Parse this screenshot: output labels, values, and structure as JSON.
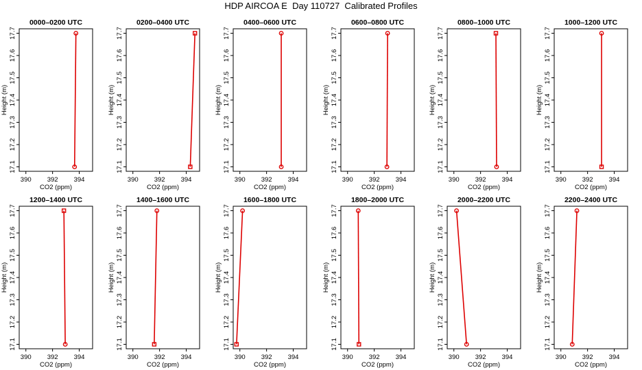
{
  "figure": {
    "title": "HDP AIRCOA E  Day 110727  Calibrated Profiles"
  },
  "chart_data": [
    {
      "type": "line",
      "title": "0000–0200 UTC",
      "xlabel": "CO2 (ppm)",
      "ylabel": "Height (m)",
      "xlim": [
        389.5,
        395
      ],
      "ylim": [
        17.08,
        17.72
      ],
      "xticks": [
        "390",
        "392",
        "394"
      ],
      "yticks": [
        "17.1",
        "17.2",
        "17.3",
        "17.4",
        "17.5",
        "17.6",
        "17.7"
      ],
      "series": [
        {
          "x": [
            393.65,
            393.75
          ],
          "y": [
            17.1,
            17.7
          ],
          "markers": [
            "circle",
            "circle"
          ]
        }
      ]
    },
    {
      "type": "line",
      "title": "0200–0400 UTC",
      "xlabel": "CO2 (ppm)",
      "ylabel": "Height (m)",
      "xlim": [
        389.5,
        395
      ],
      "ylim": [
        17.08,
        17.72
      ],
      "xticks": [
        "390",
        "392",
        "394"
      ],
      "yticks": [
        "17.1",
        "17.2",
        "17.3",
        "17.4",
        "17.5",
        "17.6",
        "17.7"
      ],
      "series": [
        {
          "x": [
            394.3,
            394.65
          ],
          "y": [
            17.1,
            17.7
          ],
          "markers": [
            "square",
            "square"
          ]
        }
      ]
    },
    {
      "type": "line",
      "title": "0400–0600 UTC",
      "xlabel": "CO2 (ppm)",
      "ylabel": "Height (m)",
      "xlim": [
        389.5,
        395
      ],
      "ylim": [
        17.08,
        17.72
      ],
      "xticks": [
        "390",
        "392",
        "394"
      ],
      "yticks": [
        "17.1",
        "17.2",
        "17.3",
        "17.4",
        "17.5",
        "17.6",
        "17.7"
      ],
      "series": [
        {
          "x": [
            393.1,
            393.1
          ],
          "y": [
            17.1,
            17.7
          ],
          "markers": [
            "circle",
            "circle"
          ]
        }
      ]
    },
    {
      "type": "line",
      "title": "0600–0800 UTC",
      "xlabel": "CO2 (ppm)",
      "ylabel": "Height (m)",
      "xlim": [
        389.5,
        395
      ],
      "ylim": [
        17.08,
        17.72
      ],
      "xticks": [
        "390",
        "392",
        "394"
      ],
      "yticks": [
        "17.1",
        "17.2",
        "17.3",
        "17.4",
        "17.5",
        "17.6",
        "17.7"
      ],
      "series": [
        {
          "x": [
            392.95,
            393.0
          ],
          "y": [
            17.1,
            17.7
          ],
          "markers": [
            "circle",
            "circle"
          ]
        }
      ]
    },
    {
      "type": "line",
      "title": "0800–1000 UTC",
      "xlabel": "CO2 (ppm)",
      "ylabel": "Height (m)",
      "xlim": [
        389.5,
        395
      ],
      "ylim": [
        17.08,
        17.72
      ],
      "xticks": [
        "390",
        "392",
        "394"
      ],
      "yticks": [
        "17.1",
        "17.2",
        "17.3",
        "17.4",
        "17.5",
        "17.6",
        "17.7"
      ],
      "series": [
        {
          "x": [
            393.2,
            393.15
          ],
          "y": [
            17.1,
            17.7
          ],
          "markers": [
            "circle",
            "square"
          ]
        }
      ]
    },
    {
      "type": "line",
      "title": "1000–1200 UTC",
      "xlabel": "CO2 (ppm)",
      "ylabel": "Height (m)",
      "xlim": [
        389.5,
        395
      ],
      "ylim": [
        17.08,
        17.72
      ],
      "xticks": [
        "390",
        "392",
        "394"
      ],
      "yticks": [
        "17.1",
        "17.2",
        "17.3",
        "17.4",
        "17.5",
        "17.6",
        "17.7"
      ],
      "series": [
        {
          "x": [
            393.05,
            393.05
          ],
          "y": [
            17.1,
            17.7
          ],
          "markers": [
            "square",
            "circle"
          ]
        }
      ]
    },
    {
      "type": "line",
      "title": "1200–1400 UTC",
      "xlabel": "CO2 (ppm)",
      "ylabel": "Height (m)",
      "xlim": [
        389.5,
        395
      ],
      "ylim": [
        17.08,
        17.72
      ],
      "xticks": [
        "390",
        "392",
        "394"
      ],
      "yticks": [
        "17.1",
        "17.2",
        "17.3",
        "17.4",
        "17.5",
        "17.6",
        "17.7"
      ],
      "series": [
        {
          "x": [
            392.95,
            392.85
          ],
          "y": [
            17.1,
            17.7
          ],
          "markers": [
            "circle",
            "square"
          ]
        }
      ]
    },
    {
      "type": "line",
      "title": "1400–1600 UTC",
      "xlabel": "CO2 (ppm)",
      "ylabel": "Height (m)",
      "xlim": [
        389.5,
        395
      ],
      "ylim": [
        17.08,
        17.72
      ],
      "xticks": [
        "390",
        "392",
        "394"
      ],
      "yticks": [
        "17.1",
        "17.2",
        "17.3",
        "17.4",
        "17.5",
        "17.6",
        "17.7"
      ],
      "series": [
        {
          "x": [
            391.6,
            391.8
          ],
          "y": [
            17.1,
            17.7
          ],
          "markers": [
            "square",
            "circle"
          ]
        }
      ]
    },
    {
      "type": "line",
      "title": "1600–1800 UTC",
      "xlabel": "CO2 (ppm)",
      "ylabel": "Height (m)",
      "xlim": [
        389.5,
        395
      ],
      "ylim": [
        17.08,
        17.72
      ],
      "xticks": [
        "390",
        "392",
        "394"
      ],
      "yticks": [
        "17.1",
        "17.2",
        "17.3",
        "17.4",
        "17.5",
        "17.6",
        "17.7"
      ],
      "series": [
        {
          "x": [
            389.75,
            390.2
          ],
          "y": [
            17.1,
            17.7
          ],
          "markers": [
            "square",
            "circle"
          ]
        }
      ]
    },
    {
      "type": "line",
      "title": "1800–2000 UTC",
      "xlabel": "CO2 (ppm)",
      "ylabel": "Height (m)",
      "xlim": [
        389.5,
        395
      ],
      "ylim": [
        17.08,
        17.72
      ],
      "xticks": [
        "390",
        "392",
        "394"
      ],
      "yticks": [
        "17.1",
        "17.2",
        "17.3",
        "17.4",
        "17.5",
        "17.6",
        "17.7"
      ],
      "series": [
        {
          "x": [
            390.85,
            390.8
          ],
          "y": [
            17.1,
            17.7
          ],
          "markers": [
            "square",
            "circle"
          ]
        }
      ]
    },
    {
      "type": "line",
      "title": "2000–2200 UTC",
      "xlabel": "CO2 (ppm)",
      "ylabel": "Height (m)",
      "xlim": [
        389.5,
        395
      ],
      "ylim": [
        17.08,
        17.72
      ],
      "xticks": [
        "390",
        "392",
        "394"
      ],
      "yticks": [
        "17.1",
        "17.2",
        "17.3",
        "17.4",
        "17.5",
        "17.6",
        "17.7"
      ],
      "series": [
        {
          "x": [
            390.95,
            390.2
          ],
          "y": [
            17.1,
            17.7
          ],
          "markers": [
            "circle",
            "circle"
          ]
        }
      ]
    },
    {
      "type": "line",
      "title": "2200–2400 UTC",
      "xlabel": "CO2 (ppm)",
      "ylabel": "Height (m)",
      "xlim": [
        389.5,
        395
      ],
      "ylim": [
        17.08,
        17.72
      ],
      "xticks": [
        "390",
        "392",
        "394"
      ],
      "yticks": [
        "17.1",
        "17.2",
        "17.3",
        "17.4",
        "17.5",
        "17.6",
        "17.7"
      ],
      "series": [
        {
          "x": [
            390.85,
            391.2
          ],
          "y": [
            17.1,
            17.7
          ],
          "markers": [
            "circle",
            "circle"
          ]
        }
      ]
    }
  ],
  "style": {
    "series_color": "#dd0000",
    "axis_color": "#000000",
    "background": "#ffffff"
  }
}
